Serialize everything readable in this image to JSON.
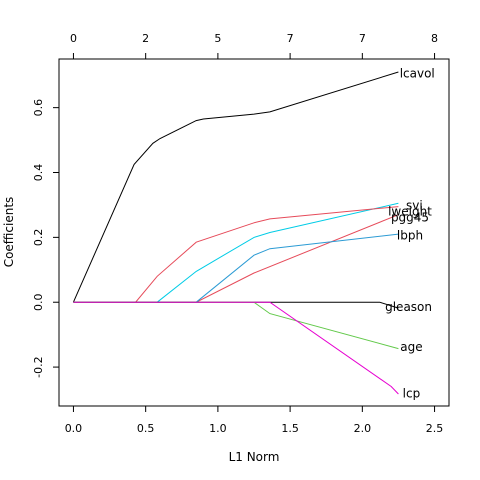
{
  "chart_data": {
    "type": "line",
    "xlabel": "L1 Norm",
    "ylabel": "Coefficients",
    "xlim": [
      -0.1,
      2.6
    ],
    "ylim": [
      -0.32,
      0.75
    ],
    "x_ticks": [
      "0.0",
      "0.5",
      "1.0",
      "1.5",
      "2.0",
      "2.5"
    ],
    "y_ticks": [
      "-0.2",
      "0.0",
      "0.2",
      "0.4",
      "0.6"
    ],
    "top_axis": {
      "ticks": [
        {
          "x": 0.0,
          "label": "0"
        },
        {
          "x": 0.5,
          "label": "2"
        },
        {
          "x": 1.0,
          "label": "5"
        },
        {
          "x": 1.5,
          "label": "7"
        },
        {
          "x": 2.0,
          "label": "7"
        },
        {
          "x": 2.5,
          "label": "8"
        }
      ]
    },
    "series": [
      {
        "name": "lcavol",
        "color": "#000000",
        "x": [
          0,
          0.42,
          0.55,
          0.6,
          0.85,
          0.9,
          1.25,
          1.36,
          2.25
        ],
        "y": [
          0,
          0.425,
          0.49,
          0.505,
          0.56,
          0.565,
          0.58,
          0.587,
          0.71
        ]
      },
      {
        "name": "svi",
        "color": "#00CCE6",
        "x": [
          0,
          0.58,
          0.85,
          1.25,
          1.36,
          2.25
        ],
        "y": [
          0,
          0,
          0.095,
          0.2,
          0.215,
          0.305
        ]
      },
      {
        "name": "lweight",
        "color": "#E64B5A",
        "x": [
          0,
          0.43,
          0.58,
          0.85,
          1.25,
          1.36,
          2.25
        ],
        "y": [
          0,
          0,
          0.08,
          0.185,
          0.245,
          0.257,
          0.295
        ]
      },
      {
        "name": "pgg45",
        "color": "#E64B5A",
        "x": [
          0,
          0.85,
          1.25,
          2.25
        ],
        "y": [
          0,
          0,
          0.09,
          0.27
        ]
      },
      {
        "name": "lbph",
        "color": "#2C9BD4",
        "x": [
          0,
          0.85,
          1.25,
          1.36,
          2.25
        ],
        "y": [
          0,
          0,
          0.145,
          0.165,
          0.21
        ]
      },
      {
        "name": "gleason",
        "color": "#000000",
        "x": [
          0,
          2.12,
          2.25
        ],
        "y": [
          0,
          0,
          -0.018
        ]
      },
      {
        "name": "age",
        "color": "#62C94A",
        "x": [
          0,
          1.25,
          1.36,
          2.25
        ],
        "y": [
          0,
          0,
          -0.035,
          -0.143
        ]
      },
      {
        "name": "lcp",
        "color": "#E600D0",
        "x": [
          0,
          1.36,
          2.2,
          2.25
        ],
        "y": [
          0,
          0,
          -0.26,
          -0.283
        ]
      }
    ],
    "labels": [
      {
        "text": "lcavol",
        "x": 2.38,
        "y": 0.705
      },
      {
        "text": "svi",
        "x": 2.36,
        "y": 0.298
      },
      {
        "text": "lweight",
        "x": 2.33,
        "y": 0.28
      },
      {
        "text": "pgg45",
        "x": 2.33,
        "y": 0.262
      },
      {
        "text": "lbph",
        "x": 2.33,
        "y": 0.205
      },
      {
        "text": "gleason",
        "x": 2.32,
        "y": -0.015
      },
      {
        "text": "age",
        "x": 2.34,
        "y": -0.138
      },
      {
        "text": "lcp",
        "x": 2.34,
        "y": -0.281
      }
    ]
  }
}
